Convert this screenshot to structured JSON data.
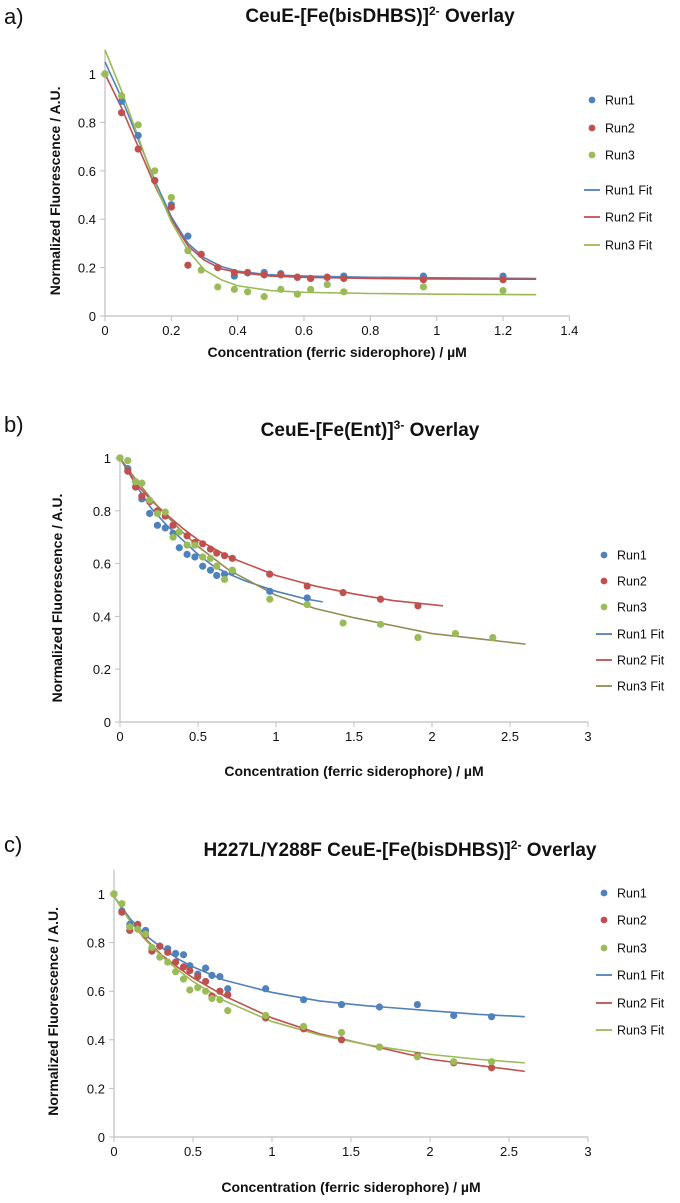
{
  "colors": {
    "run1": "#4f81bd",
    "run2": "#c0504d",
    "run3": "#9bbb59",
    "run3_fit_b": "#948a54",
    "axis": "#bfbfbf"
  },
  "chart_data": [
    {
      "type": "scatter",
      "panel_label": "a)",
      "title": {
        "main": "CeuE-[Fe(bisDHBS)]",
        "sup": "2-",
        "end": " Overlay"
      },
      "xlabel": "Concentration (ferric siderophore) / µM",
      "ylabel": "Normalized Fluorescence / A.U.",
      "xlim": [
        0,
        1.4
      ],
      "ylim": [
        0,
        1.1
      ],
      "grid": false,
      "legend": "right",
      "xticks": [
        "0",
        "0.2",
        "0.4",
        "0.6",
        "0.8",
        "1",
        "1.2",
        "1.4"
      ],
      "yticks": [
        "0",
        "0.2",
        "0.4",
        "0.6",
        "0.8",
        "1"
      ],
      "series": [
        {
          "name": "Run1",
          "kind": "points",
          "color": "run1",
          "x": [
            0,
            0.05,
            0.1,
            0.15,
            0.2,
            0.25,
            0.29,
            0.34,
            0.39,
            0.43,
            0.48,
            0.53,
            0.58,
            0.62,
            0.67,
            0.72,
            0.96,
            1.2
          ],
          "y": [
            1.0,
            0.887,
            0.746,
            0.56,
            0.46,
            0.33,
            0.255,
            0.2,
            0.165,
            0.178,
            0.18,
            0.175,
            0.16,
            0.155,
            0.16,
            0.165,
            0.165,
            0.165
          ]
        },
        {
          "name": "Run2",
          "kind": "points",
          "color": "run2",
          "x": [
            0,
            0.05,
            0.1,
            0.15,
            0.2,
            0.25,
            0.29,
            0.34,
            0.39,
            0.43,
            0.48,
            0.53,
            0.58,
            0.62,
            0.67,
            0.72,
            0.96,
            1.2
          ],
          "y": [
            1.0,
            0.84,
            0.69,
            0.56,
            0.45,
            0.21,
            0.255,
            0.2,
            0.18,
            0.18,
            0.17,
            0.17,
            0.16,
            0.155,
            0.16,
            0.155,
            0.15,
            0.15
          ]
        },
        {
          "name": "Run3",
          "kind": "points",
          "color": "run3",
          "x": [
            0,
            0.05,
            0.1,
            0.15,
            0.2,
            0.25,
            0.29,
            0.34,
            0.39,
            0.43,
            0.48,
            0.53,
            0.58,
            0.62,
            0.67,
            0.72,
            0.96,
            1.2
          ],
          "y": [
            1.0,
            0.91,
            0.79,
            0.6,
            0.49,
            0.27,
            0.19,
            0.12,
            0.11,
            0.1,
            0.08,
            0.11,
            0.09,
            0.11,
            0.13,
            0.1,
            0.12,
            0.105
          ]
        },
        {
          "name": "Run1 Fit",
          "kind": "line",
          "color": "run1",
          "x": [
            0,
            0.05,
            0.1,
            0.15,
            0.2,
            0.25,
            0.3,
            0.35,
            0.4,
            0.5,
            0.6,
            0.8,
            1.0,
            1.3
          ],
          "y": [
            1.05,
            0.9,
            0.73,
            0.56,
            0.41,
            0.3,
            0.24,
            0.205,
            0.185,
            0.17,
            0.165,
            0.16,
            0.158,
            0.155
          ]
        },
        {
          "name": "Run2 Fit",
          "kind": "line",
          "color": "run2",
          "x": [
            0,
            0.05,
            0.1,
            0.15,
            0.2,
            0.25,
            0.3,
            0.35,
            0.4,
            0.5,
            0.6,
            0.8,
            1.0,
            1.3
          ],
          "y": [
            1.0,
            0.86,
            0.7,
            0.54,
            0.4,
            0.29,
            0.23,
            0.195,
            0.18,
            0.165,
            0.16,
            0.155,
            0.153,
            0.152
          ]
        },
        {
          "name": "Run3 Fit",
          "kind": "line",
          "color": "run3",
          "x": [
            0,
            0.05,
            0.1,
            0.15,
            0.2,
            0.25,
            0.3,
            0.35,
            0.4,
            0.5,
            0.6,
            0.8,
            1.0,
            1.3
          ],
          "y": [
            1.1,
            0.93,
            0.74,
            0.55,
            0.39,
            0.27,
            0.19,
            0.15,
            0.125,
            0.105,
            0.098,
            0.093,
            0.09,
            0.088
          ]
        }
      ]
    },
    {
      "type": "scatter",
      "panel_label": "b)",
      "title": {
        "main": "CeuE-[Fe(Ent)]",
        "sup": "3-",
        "end": " Overlay"
      },
      "xlabel": "Concentration (ferric siderophore) / µM",
      "ylabel": "Normalized Fluorescence / A.U.",
      "xlim": [
        0,
        3
      ],
      "ylim": [
        0,
        1
      ],
      "grid": false,
      "legend": "right",
      "xticks": [
        "0",
        "0.5",
        "1",
        "1.5",
        "2",
        "2.5",
        "3"
      ],
      "yticks": [
        "0",
        "0.2",
        "0.4",
        "0.6",
        "0.8",
        "1"
      ],
      "series": [
        {
          "name": "Run1",
          "kind": "points",
          "color": "run1",
          "x": [
            0,
            0.05,
            0.1,
            0.14,
            0.19,
            0.24,
            0.29,
            0.34,
            0.38,
            0.43,
            0.48,
            0.53,
            0.58,
            0.62,
            0.67,
            0.72,
            0.96,
            1.2
          ],
          "y": [
            1.0,
            0.96,
            0.91,
            0.845,
            0.79,
            0.745,
            0.735,
            0.715,
            0.66,
            0.635,
            0.625,
            0.59,
            0.575,
            0.555,
            0.56,
            0.57,
            0.495,
            0.47
          ]
        },
        {
          "name": "Run2",
          "kind": "points",
          "color": "run2",
          "x": [
            0,
            0.05,
            0.1,
            0.14,
            0.19,
            0.24,
            0.29,
            0.34,
            0.43,
            0.48,
            0.53,
            0.58,
            0.62,
            0.67,
            0.72,
            0.96,
            1.2,
            1.43,
            1.67,
            1.91
          ],
          "y": [
            1.0,
            0.95,
            0.89,
            0.855,
            0.835,
            0.8,
            0.78,
            0.745,
            0.705,
            0.68,
            0.675,
            0.655,
            0.64,
            0.63,
            0.62,
            0.56,
            0.515,
            0.49,
            0.465,
            0.44
          ]
        },
        {
          "name": "Run3",
          "kind": "points",
          "color": "run3",
          "x": [
            0,
            0.05,
            0.1,
            0.14,
            0.19,
            0.24,
            0.29,
            0.34,
            0.38,
            0.43,
            0.48,
            0.53,
            0.58,
            0.62,
            0.67,
            0.72,
            0.96,
            1.2,
            1.43,
            1.67,
            1.91,
            2.15,
            2.39
          ],
          "y": [
            1.0,
            0.99,
            0.91,
            0.905,
            0.84,
            0.79,
            0.795,
            0.7,
            0.72,
            0.67,
            0.67,
            0.625,
            0.62,
            0.59,
            0.54,
            0.575,
            0.465,
            0.445,
            0.375,
            0.37,
            0.32,
            0.335,
            0.32
          ]
        },
        {
          "name": "Run1 Fit",
          "kind": "line",
          "color": "run1",
          "x": [
            0,
            0.1,
            0.2,
            0.3,
            0.4,
            0.5,
            0.6,
            0.7,
            0.8,
            1.0,
            1.2,
            1.3
          ],
          "y": [
            1.0,
            0.9,
            0.81,
            0.745,
            0.69,
            0.635,
            0.59,
            0.56,
            0.535,
            0.495,
            0.465,
            0.455
          ]
        },
        {
          "name": "Run2 Fit",
          "kind": "line",
          "color": "run2",
          "x": [
            0,
            0.1,
            0.2,
            0.3,
            0.4,
            0.5,
            0.7,
            1.0,
            1.25,
            1.5,
            1.75,
            2.07
          ],
          "y": [
            1.0,
            0.905,
            0.84,
            0.785,
            0.735,
            0.69,
            0.625,
            0.555,
            0.515,
            0.485,
            0.46,
            0.44
          ]
        },
        {
          "name": "Run3 Fit",
          "kind": "line",
          "color": "run3_fit_b",
          "x": [
            0,
            0.1,
            0.2,
            0.3,
            0.4,
            0.5,
            0.7,
            1.0,
            1.25,
            1.5,
            1.75,
            2.0,
            2.3,
            2.6
          ],
          "y": [
            1.0,
            0.92,
            0.845,
            0.78,
            0.72,
            0.665,
            0.575,
            0.48,
            0.43,
            0.395,
            0.365,
            0.335,
            0.315,
            0.295
          ]
        }
      ]
    },
    {
      "type": "scatter",
      "panel_label": "c)",
      "title": {
        "main": "H227L/Y288F CeuE-[Fe(bisDHBS)]",
        "sup": "2-",
        "end": " Overlay"
      },
      "xlabel": "Concentration (ferric siderophore) / µM",
      "ylabel": "Normalized Fluorescence / A.U.",
      "xlim": [
        0,
        3
      ],
      "ylim": [
        0,
        1.1
      ],
      "grid": false,
      "legend": "right",
      "xticks": [
        "0",
        "0.5",
        "1",
        "1.5",
        "2",
        "2.5",
        "3"
      ],
      "yticks": [
        "0",
        "0.2",
        "0.4",
        "0.6",
        "0.8",
        "1"
      ],
      "series": [
        {
          "name": "Run1",
          "kind": "points",
          "color": "run1",
          "x": [
            0,
            0.05,
            0.1,
            0.15,
            0.2,
            0.24,
            0.29,
            0.34,
            0.39,
            0.44,
            0.48,
            0.53,
            0.58,
            0.62,
            0.67,
            0.72,
            0.96,
            1.2,
            1.44,
            1.68,
            1.92,
            2.15,
            2.39
          ],
          "y": [
            1.0,
            0.93,
            0.875,
            0.87,
            0.85,
            0.775,
            0.785,
            0.775,
            0.755,
            0.75,
            0.705,
            0.67,
            0.695,
            0.665,
            0.66,
            0.61,
            0.61,
            0.565,
            0.545,
            0.535,
            0.545,
            0.5,
            0.495
          ]
        },
        {
          "name": "Run2",
          "kind": "points",
          "color": "run2",
          "x": [
            0,
            0.05,
            0.1,
            0.15,
            0.2,
            0.24,
            0.29,
            0.34,
            0.39,
            0.44,
            0.48,
            0.53,
            0.58,
            0.62,
            0.67,
            0.72,
            0.96,
            1.2,
            1.44,
            1.68,
            1.92,
            2.15,
            2.39
          ],
          "y": [
            1.0,
            0.925,
            0.85,
            0.875,
            0.83,
            0.765,
            0.785,
            0.76,
            0.72,
            0.7,
            0.685,
            0.66,
            0.64,
            0.58,
            0.6,
            0.585,
            0.49,
            0.445,
            0.4,
            0.37,
            0.335,
            0.305,
            0.285
          ]
        },
        {
          "name": "Run3",
          "kind": "points",
          "color": "run3",
          "x": [
            0,
            0.05,
            0.1,
            0.15,
            0.2,
            0.24,
            0.29,
            0.34,
            0.39,
            0.44,
            0.48,
            0.53,
            0.58,
            0.62,
            0.67,
            0.72,
            0.96,
            1.2,
            1.44,
            1.68,
            1.92,
            2.15,
            2.39
          ],
          "y": [
            1.0,
            0.96,
            0.865,
            0.855,
            0.835,
            0.78,
            0.74,
            0.72,
            0.68,
            0.65,
            0.605,
            0.615,
            0.6,
            0.57,
            0.565,
            0.52,
            0.5,
            0.455,
            0.43,
            0.37,
            0.33,
            0.31,
            0.31
          ]
        },
        {
          "name": "Run1 Fit",
          "kind": "line",
          "color": "run1",
          "x": [
            0,
            0.1,
            0.2,
            0.3,
            0.4,
            0.5,
            0.7,
            1.0,
            1.3,
            1.6,
            2.0,
            2.3,
            2.6
          ],
          "y": [
            0.99,
            0.9,
            0.83,
            0.78,
            0.735,
            0.7,
            0.645,
            0.595,
            0.56,
            0.54,
            0.52,
            0.505,
            0.495
          ]
        },
        {
          "name": "Run2 Fit",
          "kind": "line",
          "color": "run2",
          "x": [
            0,
            0.1,
            0.2,
            0.3,
            0.4,
            0.5,
            0.7,
            1.0,
            1.3,
            1.6,
            2.0,
            2.3,
            2.6
          ],
          "y": [
            0.99,
            0.89,
            0.815,
            0.75,
            0.7,
            0.655,
            0.58,
            0.49,
            0.425,
            0.38,
            0.32,
            0.295,
            0.27
          ]
        },
        {
          "name": "Run3 Fit",
          "kind": "line",
          "color": "run3",
          "x": [
            0,
            0.1,
            0.2,
            0.3,
            0.4,
            0.5,
            0.7,
            1.0,
            1.3,
            1.6,
            2.0,
            2.3,
            2.6
          ],
          "y": [
            0.99,
            0.89,
            0.81,
            0.745,
            0.69,
            0.64,
            0.56,
            0.475,
            0.42,
            0.38,
            0.34,
            0.32,
            0.305
          ]
        }
      ]
    }
  ]
}
